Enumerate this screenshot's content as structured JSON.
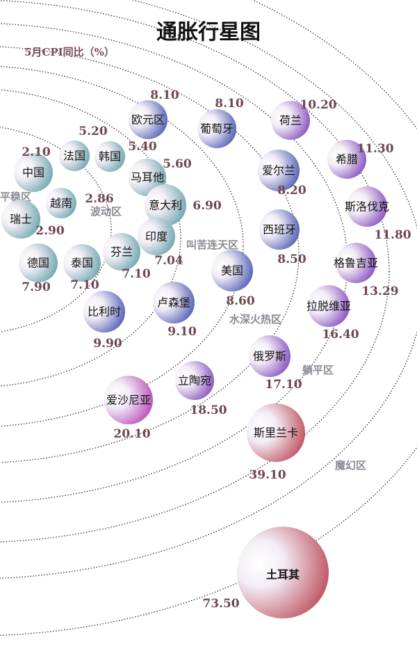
{
  "title": "通胀行星图",
  "subtitle": "5月CPI同比（%）",
  "zones": [
    "平稳区",
    "波动区",
    "叫苦连天区",
    "水深火热区",
    "躺平区",
    "魔幻区"
  ],
  "colors": {
    "teal": "#5f9ea6",
    "blue": "#3f4fae",
    "purple": "#7a3fb8",
    "magenta": "#b03ab0",
    "red": "#b8404f"
  },
  "chart_data": {
    "type": "bubble",
    "title": "通胀行星图",
    "subtitle": "5月CPI同比（%）",
    "categories": [
      "欧元区",
      "葡萄牙",
      "荷兰",
      "希腊",
      "爱尔兰",
      "斯洛伐克",
      "西班牙",
      "格鲁吉亚",
      "美国",
      "拉脱维亚",
      "俄罗斯",
      "立陶宛",
      "爱沙尼亚",
      "斯里兰卡",
      "土耳其",
      "法国",
      "韩国",
      "马耳他",
      "意大利",
      "中国",
      "越南",
      "瑞士",
      "德国",
      "泰国",
      "芬兰",
      "印度",
      "比利时",
      "卢森堡"
    ],
    "values": [
      "8.10",
      "8.10",
      "10.20",
      "11.30",
      "8.20",
      "11.80",
      "8.50",
      "13.29",
      "8.60",
      "16.40",
      "17.10",
      "18.50",
      "20.10",
      "39.10",
      "73.50",
      "5.20",
      "5.40",
      "5.60",
      "6.90",
      "2.10",
      "2.86",
      "2.90",
      "7.90",
      "7.10",
      "7.10",
      "7.04",
      "9.90",
      "9.10"
    ]
  }
}
